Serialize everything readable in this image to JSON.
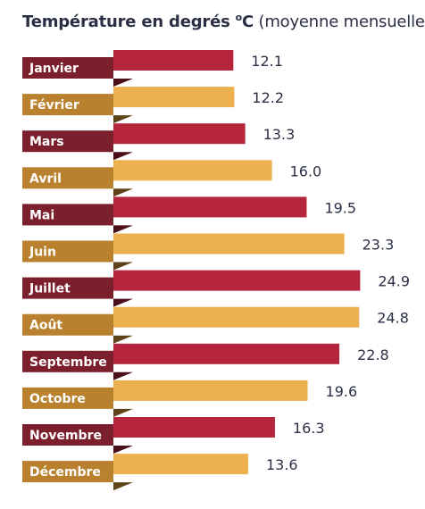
{
  "title": {
    "main": "Température en degrés",
    "unit_sup": "o",
    "unit": "C",
    "sub": "(moyenne mensuelle)"
  },
  "chart_data": {
    "type": "bar",
    "orientation": "horizontal",
    "title": "Température en degrés °C (moyenne mensuelle)",
    "categories": [
      "Janvier",
      "Février",
      "Mars",
      "Avril",
      "Mai",
      "Juin",
      "Juillet",
      "Août",
      "Septembre",
      "Octobre",
      "Novembre",
      "Décembre"
    ],
    "values": [
      12.1,
      12.2,
      13.3,
      16.0,
      19.5,
      23.3,
      24.9,
      24.8,
      22.8,
      19.6,
      16.3,
      13.6
    ],
    "value_labels": [
      "12.1",
      "12.2",
      "13.3",
      "16.0",
      "19.5",
      "23.3",
      "24.9",
      "24.8",
      "22.8",
      "19.6",
      "16.3",
      "13.6"
    ],
    "xlim": [
      0,
      25
    ],
    "grid": false,
    "legend": "none",
    "colors": {
      "bar_odd": "#b5253b",
      "bar_even": "#ecb14e",
      "label_odd": "#7b1f2c",
      "label_even": "#b9812d",
      "fold_odd": "#4a0f18",
      "fold_even": "#5e4218",
      "value_text": "#2b2f45"
    }
  }
}
